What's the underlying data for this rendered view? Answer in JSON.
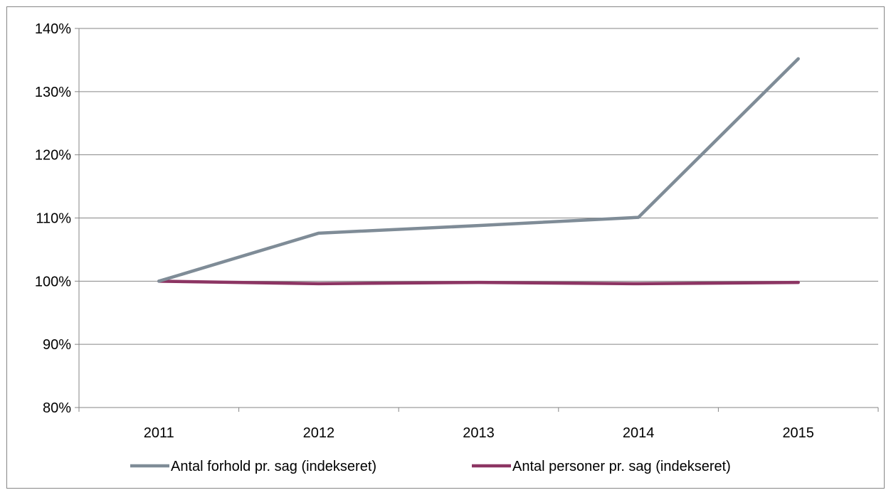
{
  "chart_data": {
    "type": "line",
    "title": "",
    "xlabel": "",
    "ylabel": "",
    "categories": [
      "2011",
      "2012",
      "2013",
      "2014",
      "2015"
    ],
    "ylim": [
      80,
      140
    ],
    "yticks": [
      80,
      90,
      100,
      110,
      120,
      130,
      140
    ],
    "ytick_labels": [
      "80%",
      "90%",
      "100%",
      "110%",
      "120%",
      "130%",
      "140%"
    ],
    "grid": "horizontal",
    "legend_position": "bottom",
    "series": [
      {
        "name": "Antal forhold pr. sag (indekseret)",
        "color": "#7f8c97",
        "values": [
          100,
          107.6,
          108.8,
          110.1,
          135.2
        ]
      },
      {
        "name": "Antal personer pr. sag (indekseret)",
        "color": "#8c3563",
        "values": [
          100,
          99.6,
          99.8,
          99.6,
          99.8
        ]
      }
    ]
  }
}
